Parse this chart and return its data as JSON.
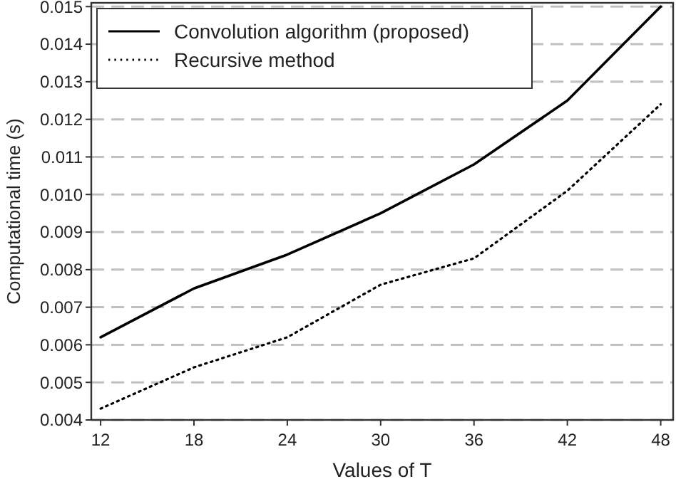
{
  "chart_data": {
    "type": "line",
    "xlabel": "Values of T",
    "ylabel": "Computational time (s)",
    "x": [
      12,
      18,
      24,
      30,
      36,
      42,
      48
    ],
    "xlim": [
      11.4,
      48.8
    ],
    "xticks": [
      12,
      18,
      24,
      30,
      36,
      42,
      48
    ],
    "ylim": [
      0.004,
      0.0151
    ],
    "yticks": [
      {
        "value": 0.004,
        "label": "0.004"
      },
      {
        "value": 0.005,
        "label": "0.005"
      },
      {
        "value": 0.006,
        "label": "0.006"
      },
      {
        "value": 0.007,
        "label": "0.007"
      },
      {
        "value": 0.008,
        "label": "0.008"
      },
      {
        "value": 0.009,
        "label": "0.009"
      },
      {
        "value": 0.01,
        "label": "0.010"
      },
      {
        "value": 0.011,
        "label": "0.011"
      },
      {
        "value": 0.012,
        "label": "0.012"
      },
      {
        "value": 0.013,
        "label": "0.013"
      },
      {
        "value": 0.014,
        "label": "0.014"
      },
      {
        "value": 0.015,
        "label": "0.015"
      }
    ],
    "grid": "y",
    "legend": "top left",
    "marker": "none",
    "series": [
      {
        "name": "Convolution algorithm (proposed)",
        "color": "#000000",
        "line_style": "solid",
        "values": [
          0.0062,
          0.0075,
          0.0084,
          0.0095,
          0.0108,
          0.0125,
          0.015
        ]
      },
      {
        "name": "Recursive method",
        "color": "#000000",
        "line_style": "dotted",
        "values": [
          0.0043,
          0.0054,
          0.0062,
          0.0076,
          0.0083,
          0.0101,
          0.0124
        ]
      }
    ]
  }
}
